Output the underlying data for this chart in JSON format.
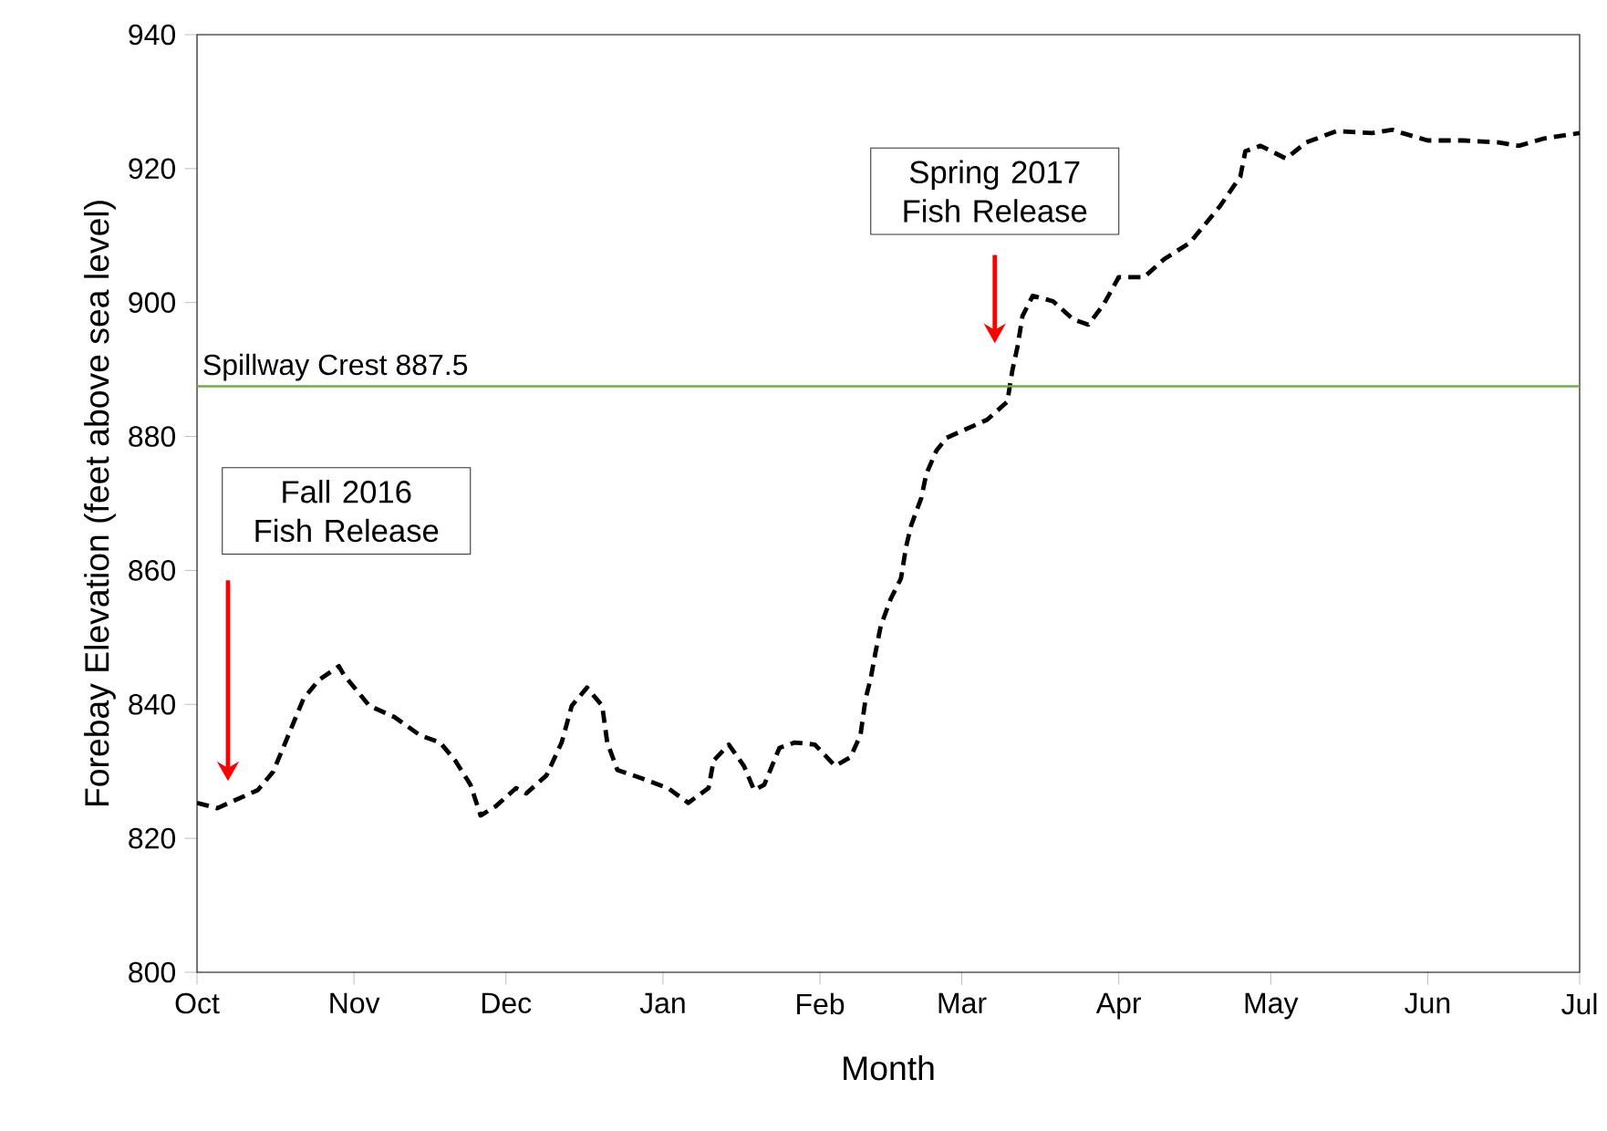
{
  "chart_data": {
    "type": "line",
    "xlabel": "Month",
    "ylabel": "Forebay Elevation (feet above sea level)",
    "xlim": [
      "2016-10-01",
      "2017-07-01"
    ],
    "ylim": [
      800,
      940
    ],
    "yticks": [
      800,
      820,
      840,
      860,
      880,
      900,
      920,
      940
    ],
    "xticks": [
      {
        "value": "2016-10-01",
        "label": "Oct"
      },
      {
        "value": "2016-11-01",
        "label": "Nov"
      },
      {
        "value": "2016-12-01",
        "label": "Dec"
      },
      {
        "value": "2017-01-01",
        "label": "Jan"
      },
      {
        "value": "2017-02-01",
        "label": "Feb"
      },
      {
        "value": "2017-03-01",
        "label": "Mar"
      },
      {
        "value": "2017-04-01",
        "label": "Apr"
      },
      {
        "value": "2017-05-01",
        "label": "May"
      },
      {
        "value": "2017-06-01",
        "label": "Jun"
      },
      {
        "value": "2017-07-01",
        "label": "Jul"
      }
    ],
    "grid": false,
    "marker": "none",
    "line_style": "dashed",
    "series": [
      {
        "color": "#000000",
        "x": [
          "2016-10-01",
          "2016-10-05",
          "2016-10-13",
          "2016-10-16",
          "2016-10-18",
          "2016-10-22",
          "2016-10-25",
          "2016-10-29",
          "2016-10-30",
          "2016-11-04",
          "2016-11-09",
          "2016-11-14",
          "2016-11-18",
          "2016-11-21",
          "2016-11-24",
          "2016-11-26",
          "2016-11-29",
          "2016-12-03",
          "2016-12-05",
          "2016-12-09",
          "2016-12-12",
          "2016-12-14",
          "2016-12-17",
          "2016-12-20",
          "2016-12-21",
          "2016-12-23",
          "2016-12-28",
          "2017-01-02",
          "2017-01-06",
          "2017-01-10",
          "2017-01-11",
          "2017-01-14",
          "2017-01-17",
          "2017-01-19",
          "2017-01-21",
          "2017-01-24",
          "2017-01-27",
          "2017-01-31",
          "2017-02-04",
          "2017-02-07",
          "2017-02-09",
          "2017-02-10",
          "2017-02-11",
          "2017-02-12",
          "2017-02-13",
          "2017-02-15",
          "2017-02-17",
          "2017-02-18",
          "2017-02-19",
          "2017-02-21",
          "2017-02-22",
          "2017-02-24",
          "2017-02-26",
          "2017-03-06",
          "2017-03-10",
          "2017-03-11",
          "2017-03-12",
          "2017-03-13",
          "2017-03-15",
          "2017-03-19",
          "2017-03-23",
          "2017-03-26",
          "2017-03-29",
          "2017-04-01",
          "2017-04-06",
          "2017-04-10",
          "2017-04-15",
          "2017-04-21",
          "2017-04-25",
          "2017-04-26",
          "2017-04-29",
          "2017-05-04",
          "2017-05-08",
          "2017-05-14",
          "2017-05-21",
          "2017-05-25",
          "2017-05-27",
          "2017-06-01",
          "2017-06-08",
          "2017-06-15",
          "2017-06-19",
          "2017-06-24",
          "2017-07-01"
        ],
        "values": [
          825.3,
          824.5,
          827.2,
          829.9,
          833.5,
          840.8,
          843.6,
          845.7,
          844.4,
          839.8,
          838.1,
          835.4,
          834.3,
          831.6,
          828.0,
          823.4,
          824.8,
          827.5,
          826.7,
          829.4,
          834.3,
          839.8,
          842.5,
          839.8,
          834.3,
          830.2,
          828.9,
          827.5,
          825.3,
          827.5,
          831.6,
          834.0,
          830.8,
          827.2,
          828.0,
          833.5,
          834.3,
          834.0,
          830.8,
          832.1,
          835.4,
          840.8,
          843.8,
          847.9,
          851.7,
          855.8,
          858.8,
          863.5,
          866.7,
          870.8,
          874.4,
          877.9,
          879.8,
          882.5,
          885.2,
          889.9,
          893.4,
          898.0,
          901.0,
          900.2,
          897.5,
          896.7,
          899.7,
          903.8,
          903.8,
          906.5,
          908.9,
          914.4,
          918.8,
          922.6,
          923.4,
          921.5,
          923.9,
          925.6,
          925.3,
          925.8,
          925.3,
          924.2,
          924.2,
          923.9,
          923.4,
          924.5,
          925.3
        ]
      }
    ],
    "ref_lines": [
      {
        "axis": "y",
        "value": 887.5,
        "label": "Spillway Crest 887.5",
        "color": "#70ad47"
      }
    ],
    "annotations": [
      "Fall 2016 Fish Release",
      "Spring 2017 Fish Release"
    ]
  }
}
